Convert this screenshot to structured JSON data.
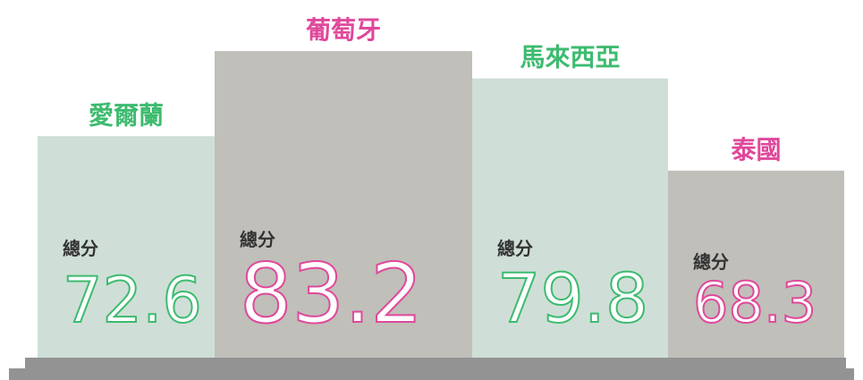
{
  "chart_data": {
    "type": "bar",
    "categories": [
      "愛爾蘭",
      "葡萄牙",
      "馬來西亞",
      "泰國"
    ],
    "values": [
      72.6,
      83.2,
      79.8,
      68.3
    ],
    "value_prefix": "總分",
    "bar_colors": [
      "#cfdfd7",
      "#c0bfb9",
      "#cfdfd7",
      "#c0bfb9"
    ],
    "label_colors": [
      "#3dbb6f",
      "#e0489b",
      "#3dbb6f",
      "#e0489b"
    ],
    "ylim": [
      45,
      85
    ]
  }
}
